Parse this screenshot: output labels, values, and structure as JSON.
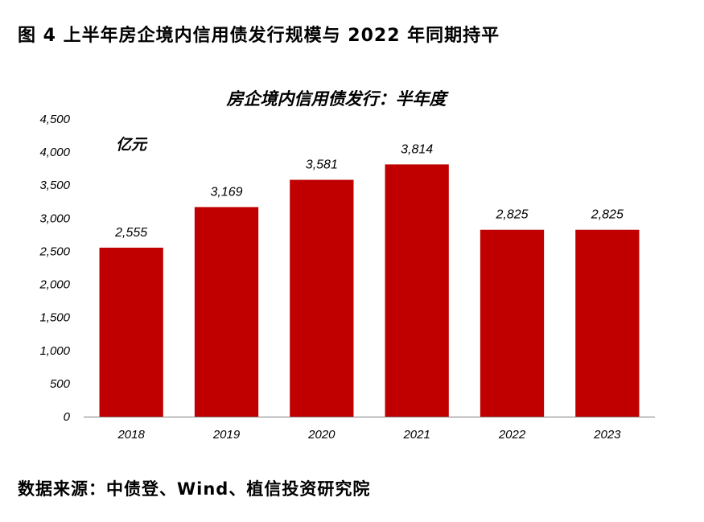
{
  "figure": {
    "caption": "图 4 上半年房企境内信用债发行规模与 2022 年同期持平",
    "source": "数据来源：中债登、Wind、植信投资研究院"
  },
  "chart_data": {
    "type": "bar",
    "title": "房企境内信用债发行：半年度",
    "unit_label": "亿元",
    "categories": [
      "2018",
      "2019",
      "2020",
      "2021",
      "2022",
      "2023"
    ],
    "values": [
      2555,
      3169,
      3581,
      3814,
      2825,
      2825
    ],
    "data_labels": [
      "2,555",
      "3,169",
      "3,581",
      "3,814",
      "2,825",
      "2,825"
    ],
    "ylim": [
      0,
      4500
    ],
    "yticks": [
      0,
      500,
      1000,
      1500,
      2000,
      2500,
      3000,
      3500,
      4000,
      4500
    ],
    "ytick_labels": [
      "0",
      "500",
      "1,000",
      "1,500",
      "2,000",
      "2,500",
      "3,000",
      "3,500",
      "4,000",
      "4,500"
    ],
    "grid": false,
    "legend": "none",
    "bar_color": "#C00000",
    "axis_color": "#7f7f7f"
  }
}
